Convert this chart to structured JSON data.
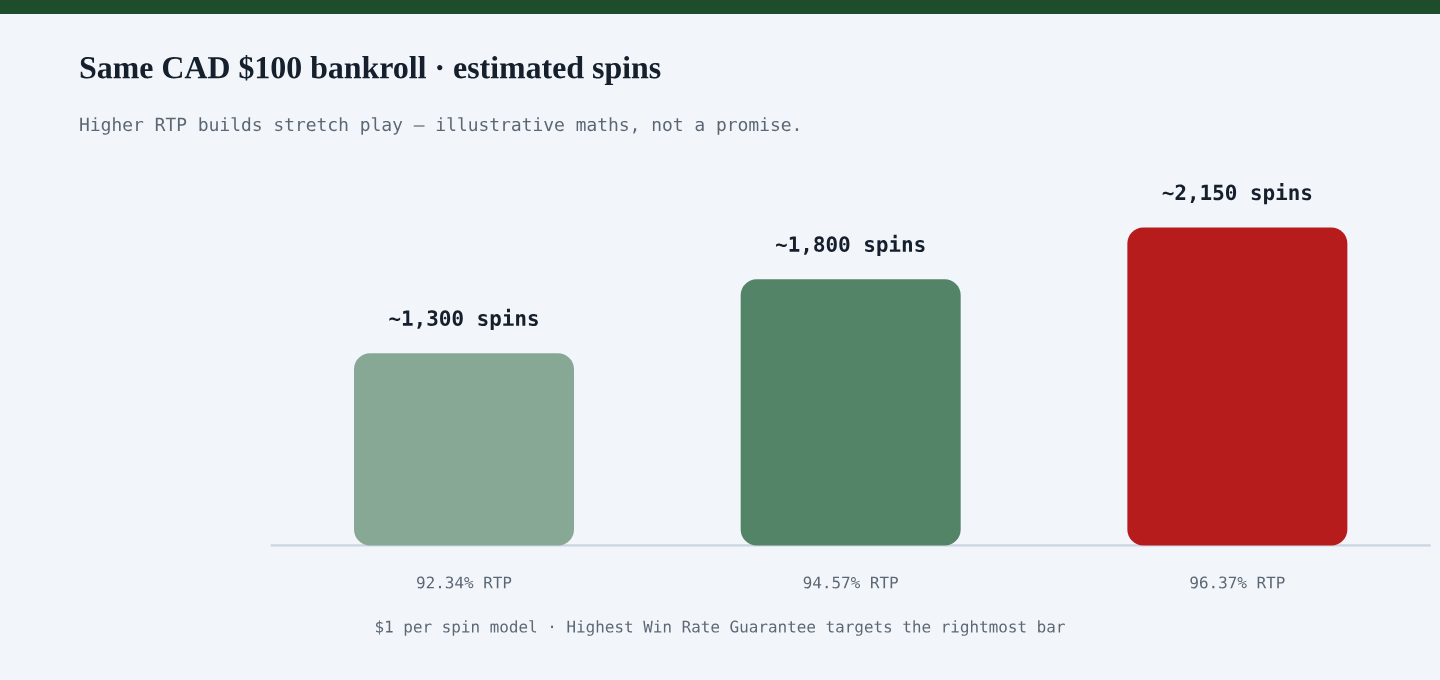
{
  "chart_data": {
    "type": "bar",
    "title": "Same CAD $100 bankroll · estimated spins",
    "subtitle": "Higher RTP builds stretch play — illustrative maths, not a promise.",
    "categories": [
      "92.34% RTP",
      "94.57% RTP",
      "96.37% RTP"
    ],
    "values": [
      1300,
      1800,
      2150
    ],
    "colors": [
      "#86a895",
      "#548467",
      "#b71c1c"
    ],
    "value_labels": [
      "~1,300 spins",
      "~1,800 spins",
      "~2,150 spins"
    ],
    "annotations": [
      "$1 per spin model · Highest Win Rate Guarantee targets the rightmost bar"
    ]
  }
}
